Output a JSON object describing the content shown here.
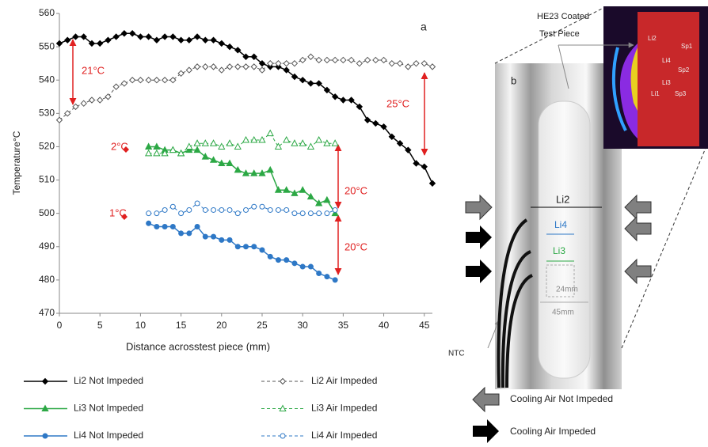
{
  "chart_data": {
    "type": "line",
    "xlabel": "Distance acrosstest piece (mm)",
    "ylabel": "Temperature°C",
    "xlim": [
      0,
      46
    ],
    "xticks": [
      0,
      5,
      10,
      15,
      20,
      25,
      30,
      35,
      40,
      45
    ],
    "ylim": [
      470,
      560
    ],
    "yticks": [
      470,
      480,
      490,
      500,
      510,
      520,
      530,
      540,
      550,
      560
    ],
    "grid": false,
    "series": [
      {
        "name": "Li2 Not Impeded",
        "color": "#000000",
        "marker": "diamond",
        "filled": true,
        "dashed": false,
        "x": [
          0,
          1,
          2,
          3,
          4,
          5,
          6,
          7,
          8,
          9,
          10,
          11,
          12,
          13,
          14,
          15,
          16,
          17,
          18,
          19,
          20,
          21,
          22,
          23,
          24,
          25,
          26,
          27,
          28,
          29,
          30,
          31,
          32,
          33,
          34,
          35,
          36,
          37,
          38,
          39,
          40,
          41,
          42,
          43,
          44,
          45,
          46
        ],
        "values": [
          551,
          552,
          553,
          553,
          551,
          551,
          552,
          553,
          554,
          554,
          553,
          553,
          552,
          553,
          553,
          552,
          552,
          553,
          552,
          552,
          551,
          550,
          549,
          547,
          547,
          545,
          544,
          544,
          543,
          541,
          540,
          539,
          539,
          537,
          535,
          534,
          534,
          532,
          528,
          527,
          526,
          523,
          521,
          519,
          515,
          514,
          509
        ]
      },
      {
        "name": "Li2 Air Impeded",
        "color": "#555555",
        "marker": "diamond",
        "filled": false,
        "dashed": true,
        "x": [
          0,
          1,
          2,
          3,
          4,
          5,
          6,
          7,
          8,
          9,
          10,
          11,
          12,
          13,
          14,
          15,
          16,
          17,
          18,
          19,
          20,
          21,
          22,
          23,
          24,
          25,
          26,
          27,
          28,
          29,
          30,
          31,
          32,
          33,
          34,
          35,
          36,
          37,
          38,
          39,
          40,
          41,
          42,
          43,
          44,
          45,
          46
        ],
        "values": [
          528,
          530,
          532,
          533,
          534,
          534,
          535,
          538,
          539,
          540,
          540,
          540,
          540,
          540,
          540,
          542,
          543,
          544,
          544,
          544,
          543,
          544,
          544,
          544,
          544,
          543,
          545,
          545,
          545,
          545,
          546,
          547,
          546,
          546,
          546,
          546,
          546,
          545,
          546,
          546,
          546,
          545,
          545,
          544,
          545,
          545,
          544
        ]
      },
      {
        "name": "Li3 Not Impeded",
        "color": "#2ca845",
        "marker": "triangle",
        "filled": true,
        "dashed": false,
        "x": [
          11,
          12,
          13,
          14,
          15,
          16,
          17,
          18,
          19,
          20,
          21,
          22,
          23,
          24,
          25,
          26,
          27,
          28,
          29,
          30,
          31,
          32,
          33,
          34
        ],
        "values": [
          520,
          520,
          519,
          519,
          518,
          519,
          519,
          517,
          516,
          515,
          515,
          513,
          512,
          512,
          512,
          513,
          507,
          507,
          506,
          507,
          505,
          503,
          504,
          500
        ]
      },
      {
        "name": "Li3 Air Impeded",
        "color": "#2ca845",
        "marker": "triangle",
        "filled": false,
        "dashed": true,
        "x": [
          11,
          12,
          13,
          14,
          15,
          16,
          17,
          18,
          19,
          20,
          21,
          22,
          23,
          24,
          25,
          26,
          27,
          28,
          29,
          30,
          31,
          32,
          33,
          34
        ],
        "values": [
          518,
          518,
          518,
          519,
          518,
          520,
          521,
          521,
          521,
          520,
          521,
          520,
          522,
          522,
          522,
          524,
          520,
          522,
          521,
          521,
          520,
          522,
          521,
          521
        ]
      },
      {
        "name": "Li4 Not Impeded",
        "color": "#2e78c6",
        "marker": "circle",
        "filled": true,
        "dashed": false,
        "x": [
          11,
          12,
          13,
          14,
          15,
          16,
          17,
          18,
          19,
          20,
          21,
          22,
          23,
          24,
          25,
          26,
          27,
          28,
          29,
          30,
          31,
          32,
          33,
          34
        ],
        "values": [
          497,
          496,
          496,
          496,
          494,
          494,
          496,
          493,
          493,
          492,
          492,
          490,
          490,
          490,
          489,
          487,
          486,
          486,
          485,
          484,
          484,
          482,
          481,
          480
        ]
      },
      {
        "name": "Li4 Air Impeded",
        "color": "#2e78c6",
        "marker": "circle",
        "filled": false,
        "dashed": true,
        "x": [
          11,
          12,
          13,
          14,
          15,
          16,
          17,
          18,
          19,
          20,
          21,
          22,
          23,
          24,
          25,
          26,
          27,
          28,
          29,
          30,
          31,
          32,
          33,
          34
        ],
        "values": [
          500,
          500,
          501,
          502,
          500,
          501,
          503,
          501,
          501,
          501,
          501,
          500,
          501,
          502,
          502,
          501,
          501,
          501,
          500,
          500,
          500,
          500,
          500,
          501
        ]
      }
    ],
    "annotations": [
      "a",
      "21°C",
      "25°C",
      "2°C",
      "1°C",
      "20°C",
      "20°C"
    ]
  },
  "diagram": {
    "panel": "b",
    "test_piece": [
      "HE23 Coated",
      "Test Piece"
    ],
    "gauges": [
      "Li2",
      "Li4",
      "Li3"
    ],
    "dimensions": [
      "24mm",
      "45mm"
    ],
    "sensor": "NTC",
    "thermal_labels": [
      "Li2",
      "Sp1",
      "Li4",
      "Sp2",
      "Li3",
      "Li1",
      "Sp3"
    ],
    "legend": [
      "Cooling Air Not Impeded",
      "Cooling Air Impeded"
    ]
  }
}
